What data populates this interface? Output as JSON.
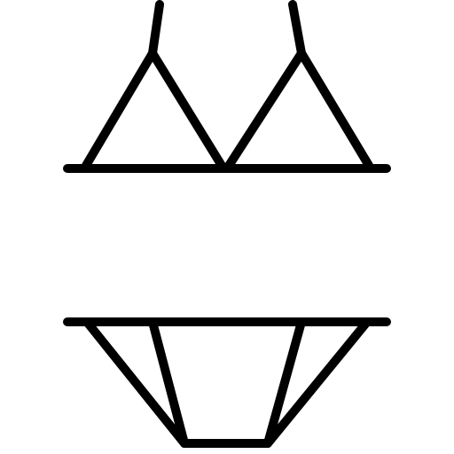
{
  "icon": {
    "name": "bikini-icon",
    "stroke_color": "#000000",
    "background_color": "#ffffff"
  }
}
